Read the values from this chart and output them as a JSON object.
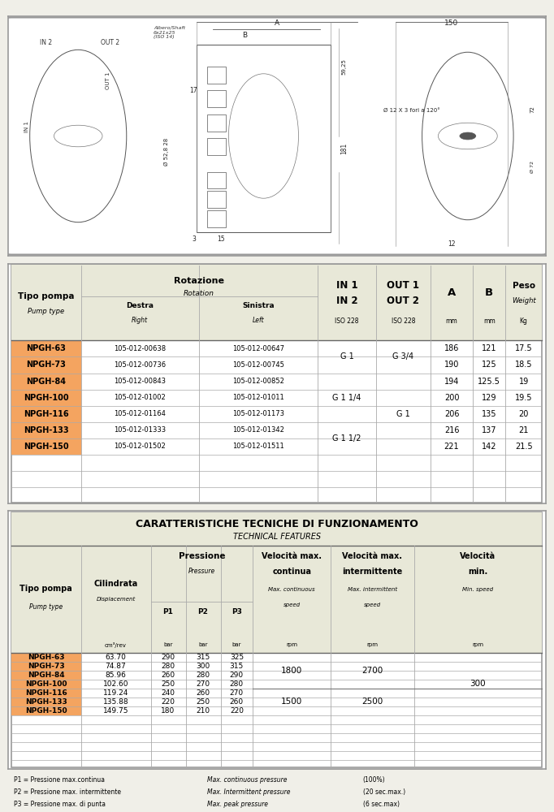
{
  "page_bg": "#f0efe8",
  "table1": {
    "pump_types": [
      "NPGH-63",
      "NPGH-73",
      "NPGH-84",
      "NPGH-100",
      "NPGH-116",
      "NPGH-133",
      "NPGH-150"
    ],
    "destra": [
      "105-012-00638",
      "105-012-00736",
      "105-012-00843",
      "105-012-01002",
      "105-012-01164",
      "105-012-01333",
      "105-012-01502"
    ],
    "sinistra": [
      "105-012-00647",
      "105-012-00745",
      "105-012-00852",
      "105-012-01011",
      "105-012-01173",
      "105-012-01342",
      "105-012-01511"
    ],
    "A": [
      186,
      190,
      194,
      200,
      206,
      216,
      221
    ],
    "B": [
      121,
      125,
      125.5,
      129,
      135,
      137,
      142
    ],
    "peso": [
      17.5,
      18.5,
      19,
      19.5,
      20,
      21,
      21.5
    ],
    "highlight_color": "#f4a460",
    "header_bg": "#e8e8d8"
  },
  "table2": {
    "title": "CARATTERISTICHE TECNICHE DI FUNZIONAMENTO",
    "subtitle": "TECHNICAL FEATURES",
    "pump_types": [
      "NPGH-63",
      "NPGH-73",
      "NPGH-84",
      "NPGH-100",
      "NPGH-116",
      "NPGH-133",
      "NPGH-150"
    ],
    "cilindrata": [
      "63.70",
      "74.87",
      "85.96",
      "102.60",
      "119.24",
      "135.88",
      "149.75"
    ],
    "P1": [
      290,
      280,
      260,
      250,
      240,
      220,
      180
    ],
    "P2": [
      315,
      300,
      280,
      270,
      260,
      250,
      210
    ],
    "P3": [
      325,
      315,
      290,
      280,
      270,
      260,
      220
    ],
    "highlight_color": "#f4a460",
    "header_bg": "#e8e8d8"
  },
  "footnotes": [
    [
      "P1 = Pressione max.continua",
      "Max. continuous pressure",
      "(100%)"
    ],
    [
      "P2 = Pressione max. intermittente",
      "Max. Intermittent pressure",
      "(20 sec.max.)"
    ],
    [
      "P3 = Pressione max. di punta",
      "Max. peak pressure",
      "(6 sec.max)"
    ]
  ]
}
